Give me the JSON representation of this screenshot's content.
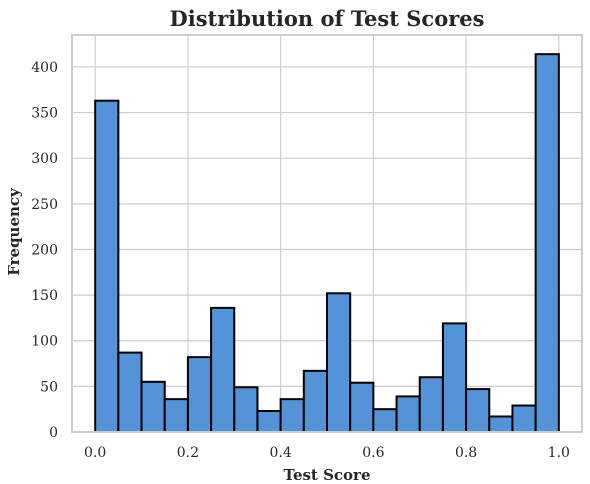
{
  "chart_data": {
    "type": "bar",
    "title": "Distribution of Test Scores",
    "xlabel": "Test Score",
    "ylabel": "Frequency",
    "bin_edges": [
      0.0,
      0.05,
      0.1,
      0.15,
      0.2,
      0.25,
      0.3,
      0.35,
      0.4,
      0.45,
      0.5,
      0.55,
      0.6,
      0.65,
      0.7,
      0.75,
      0.8,
      0.85,
      0.9,
      0.95,
      1.0
    ],
    "values": [
      363,
      87,
      55,
      36,
      82,
      136,
      49,
      23,
      36,
      67,
      152,
      54,
      25,
      39,
      60,
      119,
      47,
      17,
      29,
      414
    ],
    "xlim": [
      -0.05,
      1.05
    ],
    "ylim": [
      0,
      435
    ],
    "xticks": [
      0.0,
      0.2,
      0.4,
      0.6,
      0.8,
      1.0
    ],
    "xtick_labels": [
      "0.0",
      "0.2",
      "0.4",
      "0.6",
      "0.8",
      "1.0"
    ],
    "yticks": [
      0,
      50,
      100,
      150,
      200,
      250,
      300,
      350,
      400
    ],
    "ytick_labels": [
      "0",
      "50",
      "100",
      "150",
      "200",
      "250",
      "300",
      "350",
      "400"
    ],
    "grid": true,
    "bar_color": "#5593d9",
    "edge_color": "#000000",
    "grid_color": "#cccccc"
  }
}
